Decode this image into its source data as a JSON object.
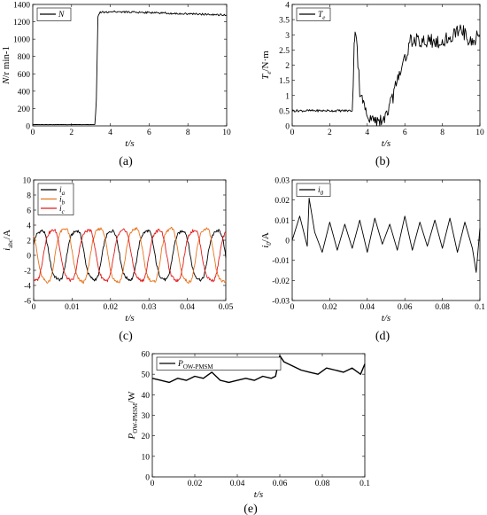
{
  "chart_data": [
    {
      "panel": "(a)",
      "type": "line",
      "xlabel": "t/s",
      "ylabel": "N/r min-1",
      "xlim": [
        0,
        10
      ],
      "ylim": [
        0,
        1400
      ],
      "xticks": [
        "0",
        "2",
        "4",
        "6",
        "8",
        "10"
      ],
      "yticks": [
        "0",
        "200",
        "400",
        "600",
        "800",
        "1000",
        "1200",
        "1400"
      ],
      "legend": [
        "N"
      ],
      "colors": [
        "#000000"
      ],
      "series": [
        {
          "name": "N",
          "x": [
            0,
            3.2,
            3.28,
            3.36,
            3.44,
            3.6,
            4,
            5,
            6,
            7,
            8,
            9,
            10
          ],
          "y": [
            15,
            15,
            300,
            1250,
            1305,
            1310,
            1315,
            1315,
            1305,
            1300,
            1290,
            1285,
            1275
          ]
        }
      ]
    },
    {
      "panel": "(b)",
      "type": "line",
      "xlabel": "t/s",
      "ylabel": "Te/N·m",
      "xlim": [
        0,
        10
      ],
      "ylim": [
        0,
        4
      ],
      "xticks": [
        "0",
        "2",
        "4",
        "6",
        "8",
        "10"
      ],
      "yticks": [
        "0",
        "0.5",
        "1",
        "1.5",
        "2",
        "2.5",
        "3",
        "3.5",
        "4"
      ],
      "legend": [
        "Te"
      ],
      "colors": [
        "#000000"
      ],
      "series": [
        {
          "name": "Te",
          "x": [
            0,
            3.2,
            3.3,
            3.35,
            3.5,
            3.6,
            3.8,
            4,
            4.5,
            5,
            5.2,
            5.5,
            6,
            6.3,
            7,
            8,
            8.7,
            9,
            9.5,
            10
          ],
          "y": [
            0.5,
            0.5,
            2.5,
            3.2,
            2.1,
            1.2,
            0.6,
            0.25,
            0.1,
            0.3,
            0.6,
            1.3,
            2.2,
            2.8,
            2.8,
            2.8,
            3.0,
            3.2,
            2.8,
            3.0
          ]
        }
      ]
    },
    {
      "panel": "(c)",
      "type": "line",
      "xlabel": "t/s",
      "ylabel": "iabc/A",
      "xlim": [
        0,
        0.05
      ],
      "ylim": [
        -6,
        10
      ],
      "xticks": [
        "0",
        "0.01",
        "0.02",
        "0.03",
        "0.04",
        "0.05"
      ],
      "yticks": [
        "-6",
        "-4",
        "-2",
        "0",
        "2",
        "4",
        "6",
        "8",
        "10"
      ],
      "legend": [
        "ia",
        "ib",
        "ic"
      ],
      "colors": [
        "#000000",
        "#e8731c",
        "#e21a1a"
      ],
      "series": [
        {
          "name": "ia",
          "amplitude": 3.5,
          "period": 0.00918,
          "phase_deg": 20
        },
        {
          "name": "ib",
          "amplitude": 3.8,
          "period": 0.00918,
          "phase_deg": 140
        },
        {
          "name": "ic",
          "amplitude": 3.6,
          "period": 0.00918,
          "phase_deg": 260
        }
      ]
    },
    {
      "panel": "(d)",
      "type": "line",
      "xlabel": "t/s",
      "ylabel": "i0/A",
      "xlim": [
        0,
        0.1
      ],
      "ylim": [
        -0.03,
        0.03
      ],
      "xticks": [
        "0",
        "0.02",
        "0.04",
        "0.06",
        "0.08",
        "0.1"
      ],
      "yticks": [
        "-0.03",
        "-0.02",
        "-0.01",
        "0",
        "0.01",
        "0.02",
        "0.03"
      ],
      "legend": [
        "i0"
      ],
      "colors": [
        "#000000"
      ],
      "series": [
        {
          "name": "i0",
          "x": [
            0,
            0.004,
            0.008,
            0.009,
            0.012,
            0.016,
            0.02,
            0.024,
            0.028,
            0.032,
            0.036,
            0.04,
            0.044,
            0.048,
            0.052,
            0.056,
            0.06,
            0.064,
            0.068,
            0.072,
            0.076,
            0.08,
            0.084,
            0.088,
            0.092,
            0.096,
            0.098,
            0.1
          ],
          "y": [
            0,
            0.012,
            -0.003,
            0.021,
            0.004,
            -0.006,
            0.009,
            -0.005,
            0.008,
            -0.004,
            0.01,
            -0.006,
            0.011,
            -0.002,
            0.008,
            -0.005,
            0.012,
            -0.005,
            0.009,
            -0.003,
            0.01,
            -0.004,
            0.011,
            -0.006,
            0.009,
            -0.004,
            -0.016,
            0.006
          ]
        }
      ]
    },
    {
      "panel": "(e)",
      "type": "line",
      "xlabel": "t/s",
      "ylabel": "POW-PMSM/W",
      "xlim": [
        0,
        0.1
      ],
      "ylim": [
        0,
        60
      ],
      "xticks": [
        "0",
        "0.02",
        "0.04",
        "0.06",
        "0.08",
        "0.1"
      ],
      "yticks": [
        "0",
        "10",
        "20",
        "30",
        "40",
        "50",
        "60"
      ],
      "legend": [
        "POW-PMSM"
      ],
      "colors": [
        "#000000"
      ],
      "series": [
        {
          "name": "POW-PMSM",
          "x": [
            0,
            0.004,
            0.008,
            0.012,
            0.016,
            0.02,
            0.024,
            0.028,
            0.032,
            0.036,
            0.04,
            0.044,
            0.048,
            0.052,
            0.056,
            0.058,
            0.06,
            0.062,
            0.066,
            0.07,
            0.074,
            0.078,
            0.082,
            0.086,
            0.09,
            0.094,
            0.098,
            0.1
          ],
          "y": [
            48,
            47,
            46,
            48,
            47,
            49,
            48,
            51,
            47,
            46,
            47,
            48,
            47,
            49,
            48,
            49,
            59,
            56,
            54,
            52,
            51,
            50,
            53,
            52,
            51,
            53,
            50,
            55
          ]
        }
      ]
    }
  ],
  "captions": [
    "(a)",
    "(b)",
    "(c)",
    "(d)",
    "(e)"
  ]
}
